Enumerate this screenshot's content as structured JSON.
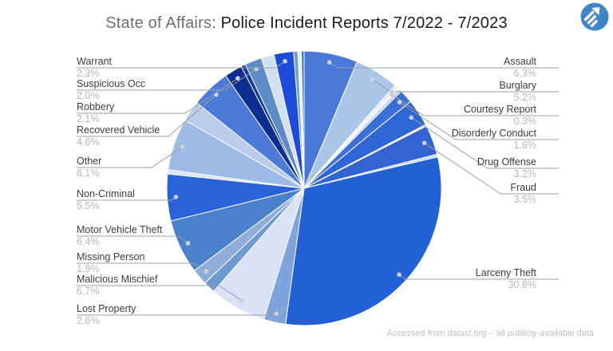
{
  "title": {
    "prefix": "State of Affairs: ",
    "main": "Police Incident Reports 7/2022 - 7/2023"
  },
  "footer": {
    "credit": "Accessed from datasf.org – all publicly-available data"
  },
  "logo": {
    "name": "blue-circle-arrow-logo",
    "color": "#3d85c6",
    "stripe_color": "#ffffff"
  },
  "colors": {
    "background": "#ffffff",
    "title_prefix": "#6f6f6f",
    "title_main": "#1b1b1b",
    "label_name": "#3a3d42",
    "label_pct": "#b3b6bb",
    "leader_line": "#9aa0a6",
    "leader_dot": "#cbd2da",
    "slice_border": "#ffffff"
  },
  "chart_data": {
    "type": "pie",
    "unit": "%",
    "start_angle_deg": 0,
    "direction": "clockwise",
    "legend_position": "outside-callouts",
    "slices": [
      {
        "label": "Assault",
        "value": 6.3,
        "color": "#4A78D9",
        "labeled": true
      },
      {
        "label": "Burglary",
        "value": 5.2,
        "color": "#A9C6E9",
        "labeled": true
      },
      {
        "label": "",
        "value": 0.3,
        "color": "#D9E4F4",
        "labeled": false
      },
      {
        "label": "Courtesy Report",
        "value": 0.3,
        "color": "#EDF2FB",
        "labeled": true
      },
      {
        "label": "",
        "value": 0.4,
        "color": "#C4D6EF",
        "labeled": false
      },
      {
        "label": "Disorderly Conduct",
        "value": 1.6,
        "color": "#3D70D6",
        "labeled": true
      },
      {
        "label": "Drug Offense",
        "value": 3.2,
        "color": "#2E64D4",
        "labeled": true
      },
      {
        "label": "",
        "value": 0.2,
        "color": "#DDE7F6",
        "labeled": false
      },
      {
        "label": "Fraud",
        "value": 3.5,
        "color": "#3163D2",
        "labeled": true
      },
      {
        "label": "",
        "value": 0.33,
        "color": "#C8D9F0",
        "labeled": false
      },
      {
        "label": "Larceny Theft",
        "value": 30.8,
        "color": "#2261D5",
        "labeled": true
      },
      {
        "label": "Lost Property",
        "value": 2.6,
        "color": "#7FA4DD",
        "labeled": true
      },
      {
        "label": "Malicious Mischief",
        "value": 6.7,
        "color": "#D9E3F5",
        "labeled": true
      },
      {
        "label": "",
        "value": 1.4,
        "color": "#6E9ACF",
        "labeled": false
      },
      {
        "label": "Missing Person",
        "value": 1.9,
        "color": "#8FADD8",
        "labeled": true
      },
      {
        "label": "Motor Vehicle Theft",
        "value": 6.4,
        "color": "#4A80CC",
        "labeled": true
      },
      {
        "label": "Non-Criminal",
        "value": 5.5,
        "color": "#2A62D7",
        "labeled": true
      },
      {
        "label": "",
        "value": 0.5,
        "color": "#DCE6F6",
        "labeled": false
      },
      {
        "label": "Other",
        "value": 6.1,
        "color": "#9CBBE6",
        "labeled": true
      },
      {
        "label": "",
        "value": 2.44,
        "color": "#B9CDEA",
        "labeled": false
      },
      {
        "label": "Recovered Vehicle",
        "value": 4.6,
        "color": "#4B7AD7",
        "labeled": true
      },
      {
        "label": "Robbery",
        "value": 2.1,
        "color": "#0C2E90",
        "labeled": true
      },
      {
        "label": "",
        "value": 0.53,
        "color": "#123A9F",
        "labeled": false
      },
      {
        "label": "Suspicious Occ",
        "value": 2.0,
        "color": "#5C8BC6",
        "labeled": true
      },
      {
        "label": "",
        "value": 1.53,
        "color": "#D3E0F2",
        "labeled": false
      },
      {
        "label": "Warrant",
        "value": 2.3,
        "color": "#1C4AD9",
        "labeled": true
      },
      {
        "label": "",
        "value": 0.5,
        "color": "#6FA0CD",
        "labeled": false
      },
      {
        "label": "",
        "value": 0.4,
        "color": "#E8EFF9",
        "labeled": false
      },
      {
        "label": "",
        "value": 0.32,
        "color": "#3F74B8",
        "labeled": false
      }
    ]
  }
}
